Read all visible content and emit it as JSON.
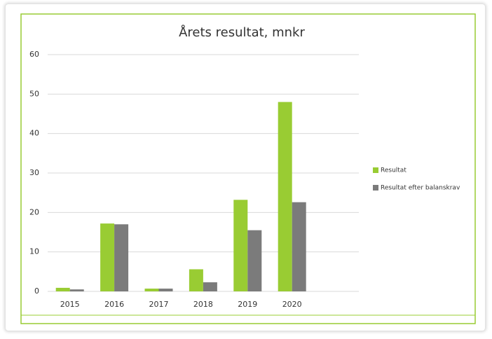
{
  "chart_data": {
    "type": "bar",
    "title": "Årets resultat, mnkr",
    "categories": [
      "2015",
      "2016",
      "2017",
      "2018",
      "2019",
      "2020"
    ],
    "series": [
      {
        "name": "Resultat",
        "color": "#99cc33",
        "values": [
          0.9,
          17.2,
          0.7,
          5.6,
          23.2,
          48
        ]
      },
      {
        "name": "Resultat efter balanskrav",
        "color": "#7b7b7b",
        "values": [
          0.5,
          17,
          0.7,
          2.3,
          15.5,
          22.6
        ]
      }
    ],
    "ylim": [
      0,
      60
    ],
    "yticks": [
      0,
      10,
      20,
      30,
      40,
      50,
      60
    ],
    "grid": true,
    "legend": "right"
  }
}
